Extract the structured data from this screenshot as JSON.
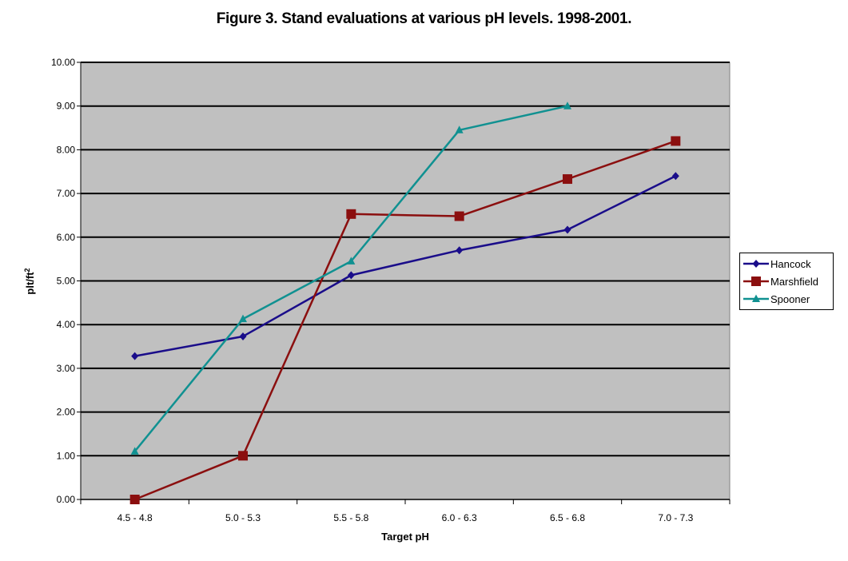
{
  "chart_data": {
    "type": "line",
    "title": "Figure 3. Stand evaluations at various pH levels. 1998-2001.",
    "xlabel": "Target pH",
    "ylabel": "plt/ft",
    "ylabel_sup": "2",
    "categories": [
      "4.5 - 4.8",
      "5.0 - 5.3",
      "5.5 - 5.8",
      "6.0 - 6.3",
      "6.5 - 6.8",
      "7.0 - 7.3"
    ],
    "ylim": [
      0,
      10
    ],
    "yticks": [
      "0.00",
      "1.00",
      "2.00",
      "3.00",
      "4.00",
      "5.00",
      "6.00",
      "7.00",
      "8.00",
      "9.00",
      "10.00"
    ],
    "grid": true,
    "legend_position": "right",
    "series": [
      {
        "name": "Hancock",
        "color": "#1a0d8a",
        "marker": "diamond",
        "values": [
          3.28,
          3.73,
          5.13,
          5.7,
          6.17,
          7.4
        ]
      },
      {
        "name": "Marshfield",
        "color": "#8b0f0f",
        "marker": "square",
        "values": [
          0.0,
          1.0,
          6.53,
          6.48,
          7.33,
          8.2
        ]
      },
      {
        "name": "Spooner",
        "color": "#109191",
        "marker": "triangle",
        "values": [
          1.1,
          4.13,
          5.45,
          8.45,
          9.0,
          null
        ]
      }
    ],
    "plot_background": "#c0c0c0"
  }
}
